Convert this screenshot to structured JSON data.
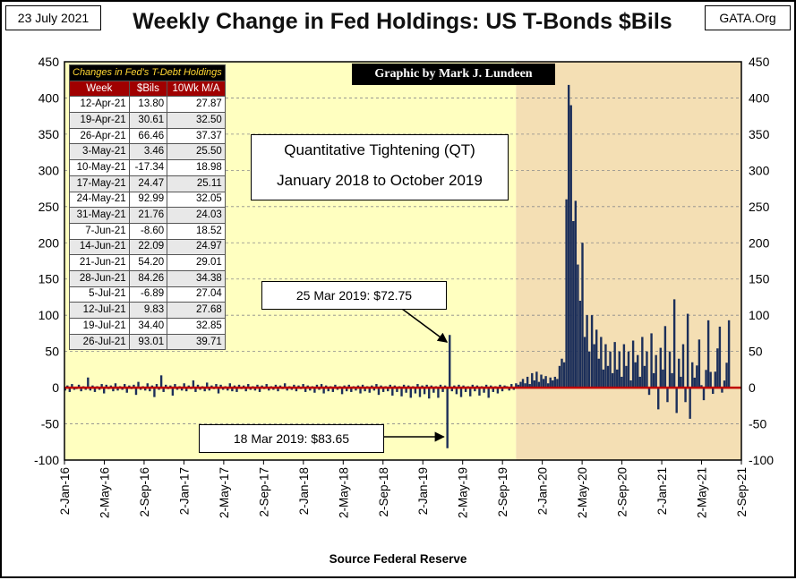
{
  "header": {
    "date": "23 July 2021",
    "title": "Weekly Change in Fed Holdings: US T-Bonds $Bils",
    "org": "GATA.Org"
  },
  "credit": "Graphic by Mark J. Lundeen",
  "qt_box": {
    "line1": "Quantitative Tightening (QT)",
    "line2": "January 2018 to October 2019"
  },
  "callouts": [
    {
      "text": "25 Mar 2019: $72.75"
    },
    {
      "text": "18 Mar 2019: $83.65"
    }
  ],
  "source": "Source Federal  Reserve",
  "table": {
    "caption": "Changes in Fed's T-Debt Holdings",
    "headers": [
      "Week",
      "$Bils",
      "10Wk M/A"
    ],
    "rows": [
      [
        "12-Apr-21",
        "13.80",
        "27.87"
      ],
      [
        "19-Apr-21",
        "30.61",
        "32.50"
      ],
      [
        "26-Apr-21",
        "66.46",
        "37.37"
      ],
      [
        "3-May-21",
        "3.46",
        "25.50"
      ],
      [
        "10-May-21",
        "-17.34",
        "18.98"
      ],
      [
        "17-May-21",
        "24.47",
        "25.11"
      ],
      [
        "24-May-21",
        "92.99",
        "32.05"
      ],
      [
        "31-May-21",
        "21.76",
        "24.03"
      ],
      [
        "7-Jun-21",
        "-8.60",
        "18.52"
      ],
      [
        "14-Jun-21",
        "22.09",
        "24.97"
      ],
      [
        "21-Jun-21",
        "54.20",
        "29.01"
      ],
      [
        "28-Jun-21",
        "84.26",
        "34.38"
      ],
      [
        "5-Jul-21",
        "-6.89",
        "27.04"
      ],
      [
        "12-Jul-21",
        "9.83",
        "27.68"
      ],
      [
        "19-Jul-21",
        "34.40",
        "32.85"
      ],
      [
        "26-Jul-21",
        "93.01",
        "39.71"
      ]
    ]
  },
  "chart_data": {
    "type": "bar",
    "ylim": [
      -100,
      450
    ],
    "y_ticks": [
      450,
      400,
      350,
      300,
      250,
      200,
      150,
      100,
      50,
      0,
      -50,
      -100
    ],
    "x_tick_labels": [
      "2-Jan-16",
      "2-May-16",
      "2-Sep-16",
      "2-Jan-17",
      "2-May-17",
      "2-Sep-17",
      "2-Jan-18",
      "2-May-18",
      "2-Sep-18",
      "2-Jan-19",
      "2-May-19",
      "2-Sep-19",
      "2-Jan-20",
      "2-May-20",
      "2-Sep-20",
      "2-Jan-21",
      "2-May-21",
      "2-Sep-21"
    ],
    "x_range": [
      "2016-01-02",
      "2021-09-02"
    ],
    "shaded_period_start": "2019-10-14",
    "bar_color": "#1c2f5a",
    "zero_line_color": "#c00000",
    "plot_bg_early": "#ffffc0",
    "plot_bg_late": "#f4dfb4",
    "weekly_changes": [
      [
        "2016-01-04",
        -4
      ],
      [
        "2016-01-11",
        3
      ],
      [
        "2016-01-18",
        -6
      ],
      [
        "2016-01-25",
        5
      ],
      [
        "2016-02-01",
        -3
      ],
      [
        "2016-02-08",
        -2
      ],
      [
        "2016-02-15",
        4
      ],
      [
        "2016-02-22",
        -5
      ],
      [
        "2016-02-29",
        2
      ],
      [
        "2016-03-07",
        -3
      ],
      [
        "2016-03-14",
        14
      ],
      [
        "2016-03-21",
        -4
      ],
      [
        "2016-03-28",
        3
      ],
      [
        "2016-04-04",
        -6
      ],
      [
        "2016-04-11",
        2
      ],
      [
        "2016-04-18",
        -3
      ],
      [
        "2016-04-25",
        5
      ],
      [
        "2016-05-02",
        -8
      ],
      [
        "2016-05-09",
        4
      ],
      [
        "2016-05-16",
        -2
      ],
      [
        "2016-05-23",
        3
      ],
      [
        "2016-05-30",
        -5
      ],
      [
        "2016-06-06",
        6
      ],
      [
        "2016-06-13",
        -4
      ],
      [
        "2016-06-20",
        2
      ],
      [
        "2016-06-27",
        -3
      ],
      [
        "2016-07-04",
        5
      ],
      [
        "2016-07-11",
        -7
      ],
      [
        "2016-07-18",
        3
      ],
      [
        "2016-07-25",
        -2
      ],
      [
        "2016-08-01",
        4
      ],
      [
        "2016-08-08",
        -10
      ],
      [
        "2016-08-15",
        8
      ],
      [
        "2016-08-22",
        -3
      ],
      [
        "2016-08-29",
        2
      ],
      [
        "2016-09-05",
        -4
      ],
      [
        "2016-09-12",
        6
      ],
      [
        "2016-09-19",
        -5
      ],
      [
        "2016-09-26",
        3
      ],
      [
        "2016-10-03",
        -13
      ],
      [
        "2016-10-10",
        5
      ],
      [
        "2016-10-17",
        -3
      ],
      [
        "2016-10-24",
        17
      ],
      [
        "2016-10-31",
        -6
      ],
      [
        "2016-11-07",
        4
      ],
      [
        "2016-11-14",
        -2
      ],
      [
        "2016-11-21",
        3
      ],
      [
        "2016-11-28",
        -11
      ],
      [
        "2016-12-05",
        5
      ],
      [
        "2016-12-12",
        -3
      ],
      [
        "2016-12-19",
        2
      ],
      [
        "2016-12-26",
        -4
      ],
      [
        "2017-01-02",
        6
      ],
      [
        "2017-01-09",
        -5
      ],
      [
        "2017-01-16",
        3
      ],
      [
        "2017-01-23",
        -2
      ],
      [
        "2017-01-30",
        10
      ],
      [
        "2017-02-06",
        -6
      ],
      [
        "2017-02-13",
        4
      ],
      [
        "2017-02-20",
        -3
      ],
      [
        "2017-02-27",
        2
      ],
      [
        "2017-03-06",
        -5
      ],
      [
        "2017-03-13",
        7
      ],
      [
        "2017-03-20",
        -4
      ],
      [
        "2017-03-27",
        3
      ],
      [
        "2017-04-03",
        -2
      ],
      [
        "2017-04-10",
        5
      ],
      [
        "2017-04-17",
        -8
      ],
      [
        "2017-04-24",
        4
      ],
      [
        "2017-05-01",
        -3
      ],
      [
        "2017-05-08",
        2
      ],
      [
        "2017-05-15",
        -4
      ],
      [
        "2017-05-22",
        6
      ],
      [
        "2017-05-29",
        -5
      ],
      [
        "2017-06-05",
        3
      ],
      [
        "2017-06-12",
        -6
      ],
      [
        "2017-06-19",
        4
      ],
      [
        "2017-06-26",
        -2
      ],
      [
        "2017-07-03",
        3
      ],
      [
        "2017-07-10",
        -5
      ],
      [
        "2017-07-17",
        5
      ],
      [
        "2017-07-24",
        -3
      ],
      [
        "2017-07-31",
        2
      ],
      [
        "2017-08-07",
        -4
      ],
      [
        "2017-08-14",
        4
      ],
      [
        "2017-08-21",
        -6
      ],
      [
        "2017-08-28",
        3
      ],
      [
        "2017-09-04",
        -2
      ],
      [
        "2017-09-11",
        5
      ],
      [
        "2017-09-18",
        -4
      ],
      [
        "2017-09-25",
        2
      ],
      [
        "2017-10-02",
        -3
      ],
      [
        "2017-10-09",
        4
      ],
      [
        "2017-10-16",
        -5
      ],
      [
        "2017-10-23",
        3
      ],
      [
        "2017-10-30",
        -2
      ],
      [
        "2017-11-06",
        6
      ],
      [
        "2017-11-13",
        -4
      ],
      [
        "2017-11-20",
        2
      ],
      [
        "2017-11-27",
        -3
      ],
      [
        "2017-12-04",
        4
      ],
      [
        "2017-12-11",
        -5
      ],
      [
        "2017-12-18",
        3
      ],
      [
        "2017-12-25",
        -2
      ],
      [
        "2018-01-01",
        5
      ],
      [
        "2018-01-08",
        -6
      ],
      [
        "2018-01-15",
        3
      ],
      [
        "2018-01-22",
        -4
      ],
      [
        "2018-01-29",
        2
      ],
      [
        "2018-02-05",
        -7
      ],
      [
        "2018-02-12",
        4
      ],
      [
        "2018-02-19",
        -3
      ],
      [
        "2018-02-26",
        5
      ],
      [
        "2018-03-05",
        -8
      ],
      [
        "2018-03-12",
        3
      ],
      [
        "2018-03-19",
        -5
      ],
      [
        "2018-03-26",
        2
      ],
      [
        "2018-04-02",
        -6
      ],
      [
        "2018-04-09",
        4
      ],
      [
        "2018-04-16",
        -3
      ],
      [
        "2018-04-23",
        2
      ],
      [
        "2018-04-30",
        -9
      ],
      [
        "2018-05-07",
        3
      ],
      [
        "2018-05-14",
        -5
      ],
      [
        "2018-05-21",
        4
      ],
      [
        "2018-05-28",
        -6
      ],
      [
        "2018-06-04",
        2
      ],
      [
        "2018-06-11",
        -4
      ],
      [
        "2018-06-18",
        3
      ],
      [
        "2018-06-25",
        -8
      ],
      [
        "2018-07-02",
        4
      ],
      [
        "2018-07-09",
        -5
      ],
      [
        "2018-07-16",
        2
      ],
      [
        "2018-07-23",
        -7
      ],
      [
        "2018-07-30",
        3
      ],
      [
        "2018-08-06",
        -4
      ],
      [
        "2018-08-13",
        5
      ],
      [
        "2018-08-20",
        -10
      ],
      [
        "2018-08-27",
        3
      ],
      [
        "2018-09-03",
        -6
      ],
      [
        "2018-09-10",
        2
      ],
      [
        "2018-09-17",
        -5
      ],
      [
        "2018-09-24",
        4
      ],
      [
        "2018-10-01",
        -11
      ],
      [
        "2018-10-08",
        3
      ],
      [
        "2018-10-15",
        -6
      ],
      [
        "2018-10-22",
        2
      ],
      [
        "2018-10-29",
        -12
      ],
      [
        "2018-11-05",
        4
      ],
      [
        "2018-11-12",
        -7
      ],
      [
        "2018-11-19",
        3
      ],
      [
        "2018-11-26",
        -14
      ],
      [
        "2018-12-03",
        2
      ],
      [
        "2018-12-10",
        -8
      ],
      [
        "2018-12-17",
        5
      ],
      [
        "2018-12-24",
        -13
      ],
      [
        "2018-12-31",
        3
      ],
      [
        "2019-01-07",
        -9
      ],
      [
        "2019-01-14",
        4
      ],
      [
        "2019-01-21",
        -15
      ],
      [
        "2019-01-28",
        3
      ],
      [
        "2019-02-04",
        -7
      ],
      [
        "2019-02-11",
        2
      ],
      [
        "2019-02-18",
        -14
      ],
      [
        "2019-02-25",
        4
      ],
      [
        "2019-03-04",
        -6
      ],
      [
        "2019-03-11",
        3
      ],
      [
        "2019-03-18",
        -83.65
      ],
      [
        "2019-03-25",
        72.75
      ],
      [
        "2019-04-01",
        -5
      ],
      [
        "2019-04-08",
        3
      ],
      [
        "2019-04-15",
        -9
      ],
      [
        "2019-04-22",
        4
      ],
      [
        "2019-04-29",
        -13
      ],
      [
        "2019-05-06",
        3
      ],
      [
        "2019-05-13",
        -6
      ],
      [
        "2019-05-20",
        2
      ],
      [
        "2019-05-27",
        -12
      ],
      [
        "2019-06-03",
        4
      ],
      [
        "2019-06-10",
        -5
      ],
      [
        "2019-06-17",
        3
      ],
      [
        "2019-06-24",
        -11
      ],
      [
        "2019-07-01",
        2
      ],
      [
        "2019-07-08",
        -7
      ],
      [
        "2019-07-15",
        4
      ],
      [
        "2019-07-22",
        -14
      ],
      [
        "2019-07-29",
        3
      ],
      [
        "2019-08-05",
        -6
      ],
      [
        "2019-08-12",
        2
      ],
      [
        "2019-08-19",
        -8
      ],
      [
        "2019-08-26",
        4
      ],
      [
        "2019-09-02",
        -5
      ],
      [
        "2019-09-09",
        3
      ],
      [
        "2019-09-16",
        2
      ],
      [
        "2019-09-23",
        -4
      ],
      [
        "2019-09-30",
        5
      ],
      [
        "2019-10-07",
        -3
      ],
      [
        "2019-10-14",
        6
      ],
      [
        "2019-10-21",
        4
      ],
      [
        "2019-10-28",
        8
      ],
      [
        "2019-11-04",
        12
      ],
      [
        "2019-11-11",
        6
      ],
      [
        "2019-11-18",
        15
      ],
      [
        "2019-11-25",
        5
      ],
      [
        "2019-12-02",
        20
      ],
      [
        "2019-12-09",
        10
      ],
      [
        "2019-12-16",
        22
      ],
      [
        "2019-12-23",
        8
      ],
      [
        "2019-12-30",
        18
      ],
      [
        "2020-01-06",
        12
      ],
      [
        "2020-01-13",
        16
      ],
      [
        "2020-01-20",
        6
      ],
      [
        "2020-01-27",
        14
      ],
      [
        "2020-02-03",
        10
      ],
      [
        "2020-02-10",
        15
      ],
      [
        "2020-02-17",
        12
      ],
      [
        "2020-02-24",
        30
      ],
      [
        "2020-03-02",
        40
      ],
      [
        "2020-03-09",
        35
      ],
      [
        "2020-03-16",
        260
      ],
      [
        "2020-03-23",
        418
      ],
      [
        "2020-03-30",
        390
      ],
      [
        "2020-04-06",
        230
      ],
      [
        "2020-04-13",
        258
      ],
      [
        "2020-04-20",
        170
      ],
      [
        "2020-04-27",
        120
      ],
      [
        "2020-05-04",
        200
      ],
      [
        "2020-05-11",
        70
      ],
      [
        "2020-05-18",
        100
      ],
      [
        "2020-05-25",
        50
      ],
      [
        "2020-06-02",
        100
      ],
      [
        "2020-06-09",
        60
      ],
      [
        "2020-06-16",
        80
      ],
      [
        "2020-06-23",
        40
      ],
      [
        "2020-06-30",
        70
      ],
      [
        "2020-07-07",
        25
      ],
      [
        "2020-07-14",
        60
      ],
      [
        "2020-07-21",
        30
      ],
      [
        "2020-07-28",
        50
      ],
      [
        "2020-08-04",
        20
      ],
      [
        "2020-08-11",
        63
      ],
      [
        "2020-08-18",
        25
      ],
      [
        "2020-08-25",
        50
      ],
      [
        "2020-09-01",
        15
      ],
      [
        "2020-09-08",
        60
      ],
      [
        "2020-09-15",
        30
      ],
      [
        "2020-09-22",
        50
      ],
      [
        "2020-09-29",
        10
      ],
      [
        "2020-10-06",
        65
      ],
      [
        "2020-10-13",
        35
      ],
      [
        "2020-10-20",
        45
      ],
      [
        "2020-10-27",
        15
      ],
      [
        "2020-11-03",
        70
      ],
      [
        "2020-11-10",
        30
      ],
      [
        "2020-11-17",
        50
      ],
      [
        "2020-11-24",
        -10
      ],
      [
        "2020-12-01",
        75
      ],
      [
        "2020-12-08",
        20
      ],
      [
        "2020-12-15",
        45
      ],
      [
        "2020-12-22",
        -30
      ],
      [
        "2020-12-29",
        55
      ],
      [
        "2021-01-05",
        25
      ],
      [
        "2021-01-12",
        85
      ],
      [
        "2021-01-19",
        -20
      ],
      [
        "2021-01-26",
        50
      ],
      [
        "2021-02-02",
        20
      ],
      [
        "2021-02-09",
        122
      ],
      [
        "2021-02-16",
        -35
      ],
      [
        "2021-02-23",
        40
      ],
      [
        "2021-03-01",
        15
      ],
      [
        "2021-03-08",
        60
      ],
      [
        "2021-03-15",
        -20
      ],
      [
        "2021-03-22",
        102
      ],
      [
        "2021-03-29",
        -43
      ],
      [
        "2021-04-05",
        35
      ],
      [
        "2021-04-12",
        13.8
      ],
      [
        "2021-04-19",
        30.61
      ],
      [
        "2021-04-26",
        66.46
      ],
      [
        "2021-05-03",
        3.46
      ],
      [
        "2021-05-10",
        -17.34
      ],
      [
        "2021-05-17",
        24.47
      ],
      [
        "2021-05-24",
        92.99
      ],
      [
        "2021-05-31",
        21.76
      ],
      [
        "2021-06-07",
        -8.6
      ],
      [
        "2021-06-14",
        22.09
      ],
      [
        "2021-06-21",
        54.2
      ],
      [
        "2021-06-28",
        84.26
      ],
      [
        "2021-07-05",
        -6.89
      ],
      [
        "2021-07-12",
        9.83
      ],
      [
        "2021-07-19",
        34.4
      ],
      [
        "2021-07-26",
        93.01
      ]
    ]
  }
}
